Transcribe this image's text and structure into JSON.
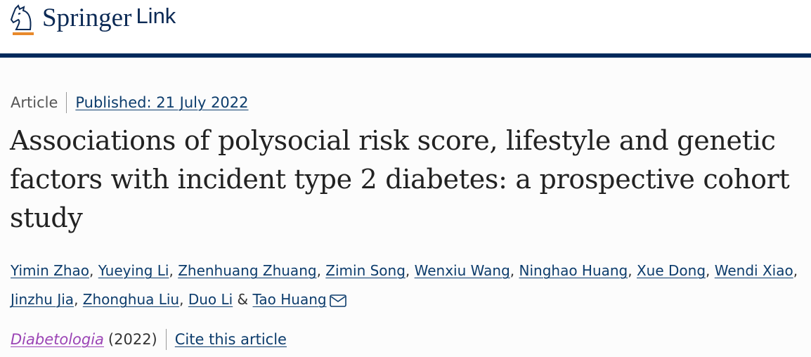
{
  "header": {
    "brand": "Springer",
    "brand_suffix": "Link",
    "colors": {
      "navy": "#002a5c",
      "accent": "#e8892b"
    }
  },
  "meta": {
    "type": "Article",
    "published": "Published: 21 July 2022"
  },
  "title": "Associations of polysocial risk score, lifestyle and genetic factors with incident type 2 diabetes: a prospective cohort study",
  "authors": [
    "Yimin Zhao",
    "Yueying Li",
    "Zhenhuang Zhuang",
    "Zimin Song",
    "Wenxiu Wang",
    "Ninghao Huang",
    "Xue Dong",
    "Wendi Xiao",
    "Jinzhu Jia",
    "Zhonghua Liu",
    "Duo Li",
    "Tao Huang"
  ],
  "authors_conjunction": "&",
  "corresponding_icon": "mail-icon",
  "journal": {
    "name": "Diabetologia",
    "year": "(2022)",
    "cite": "Cite this article"
  }
}
